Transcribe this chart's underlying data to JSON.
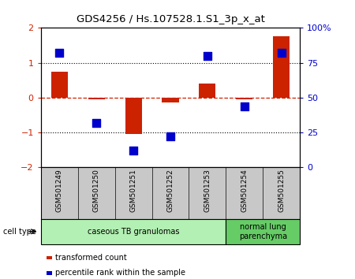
{
  "title": "GDS4256 / Hs.107528.1.S1_3p_x_at",
  "samples": [
    "GSM501249",
    "GSM501250",
    "GSM501251",
    "GSM501252",
    "GSM501253",
    "GSM501254",
    "GSM501255"
  ],
  "red_values": [
    0.75,
    -0.05,
    -1.05,
    -0.13,
    0.4,
    -0.05,
    1.75
  ],
  "blue_values_pct": [
    82,
    32,
    12,
    22,
    80,
    44,
    82
  ],
  "ylim_left": [
    -2,
    2
  ],
  "ylim_right": [
    0,
    100
  ],
  "yticks_left": [
    -2,
    -1,
    0,
    1,
    2
  ],
  "yticks_right": [
    0,
    25,
    50,
    75,
    100
  ],
  "ytick_labels_right": [
    "0",
    "25",
    "50",
    "75",
    "100%"
  ],
  "hline_dotted": [
    1,
    -1
  ],
  "bar_color": "#cc2200",
  "dot_color": "#0000cc",
  "groups": [
    {
      "label": "caseous TB granulomas",
      "start": 0,
      "end": 5,
      "color": "#b3f0b3"
    },
    {
      "label": "normal lung\nparenchyma",
      "start": 5,
      "end": 7,
      "color": "#66cc66"
    }
  ],
  "cell_type_label": "cell type",
  "legend_items": [
    {
      "color": "#cc2200",
      "label": "transformed count"
    },
    {
      "color": "#0000cc",
      "label": "percentile rank within the sample"
    }
  ],
  "sample_bg_color": "#c8c8c8",
  "plot_bg": "#ffffff",
  "bar_width": 0.45,
  "dot_size": 45
}
